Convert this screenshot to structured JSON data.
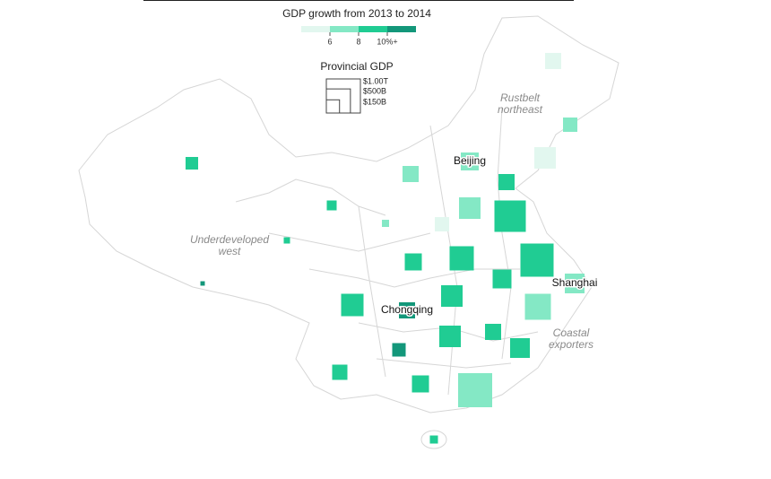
{
  "map_data": {
    "legend": {
      "title": "GDP growth from 2013 to 2014",
      "ticks": [
        6,
        8,
        {
          "value": 10,
          "label": "10%+"
        }
      ],
      "colors": [
        "#e2f7ef",
        "#84e8c5",
        "#20cc93",
        "#13977a"
      ]
    },
    "size_legend": {
      "title": "Provincial GDP",
      "items": [
        {
          "value": 1000,
          "label": "$1.00T"
        },
        {
          "value": 500,
          "label": "$500B"
        },
        {
          "value": 150,
          "label": "$150B"
        }
      ]
    },
    "annotations": [
      [
        "Rustbelt",
        "northeast"
      ],
      [
        "Underdeveloped",
        "west"
      ],
      [
        "Coastal",
        "exporters"
      ]
    ],
    "provinces": [
      {
        "name": null,
        "gdp": 224,
        "growth": 5
      },
      {
        "name": null,
        "gdp": 177,
        "growth": 7
      },
      {
        "name": null,
        "gdp": 399,
        "growth": 5
      },
      {
        "name": null,
        "gdp": 224,
        "growth": 7
      },
      {
        "name": "Beijing",
        "gdp": 277,
        "growth": 7
      },
      {
        "name": null,
        "gdp": 224,
        "growth": 9
      },
      {
        "name": null,
        "gdp": 399,
        "growth": 7
      },
      {
        "name": null,
        "gdp": 177,
        "growth": 5
      },
      {
        "name": null,
        "gdp": 848,
        "growth": 9
      },
      {
        "name": null,
        "gdp": 136,
        "growth": 9
      },
      {
        "name": null,
        "gdp": 84,
        "growth": 9
      },
      {
        "name": null,
        "gdp": 44,
        "growth": 7
      },
      {
        "name": null,
        "gdp": 34,
        "growth": 9
      },
      {
        "name": null,
        "gdp": 17,
        "growth": 11
      },
      {
        "name": null,
        "gdp": 250,
        "growth": 9
      },
      {
        "name": null,
        "gdp": 505,
        "growth": 9
      },
      {
        "name": null,
        "gdp": 948,
        "growth": 9
      },
      {
        "name": null,
        "gdp": 305,
        "growth": 9
      },
      {
        "name": "Shanghai",
        "gdp": 335,
        "growth": 7
      },
      {
        "name": null,
        "gdp": 433,
        "growth": 9
      },
      {
        "name": "Chongqing",
        "gdp": 224,
        "growth": 11
      },
      {
        "name": null,
        "gdp": 399,
        "growth": 9
      },
      {
        "name": null,
        "gdp": 582,
        "growth": 7
      },
      {
        "name": null,
        "gdp": 399,
        "growth": 9
      },
      {
        "name": null,
        "gdp": 224,
        "growth": 9
      },
      {
        "name": null,
        "gdp": 335,
        "growth": 9
      },
      {
        "name": null,
        "gdp": 156,
        "growth": 11
      },
      {
        "name": null,
        "gdp": 200,
        "growth": 9
      },
      {
        "name": null,
        "gdp": 250,
        "growth": 9
      },
      {
        "name": null,
        "gdp": 1000,
        "growth": 7
      },
      {
        "name": null,
        "gdp": 56,
        "growth": 9
      }
    ]
  }
}
